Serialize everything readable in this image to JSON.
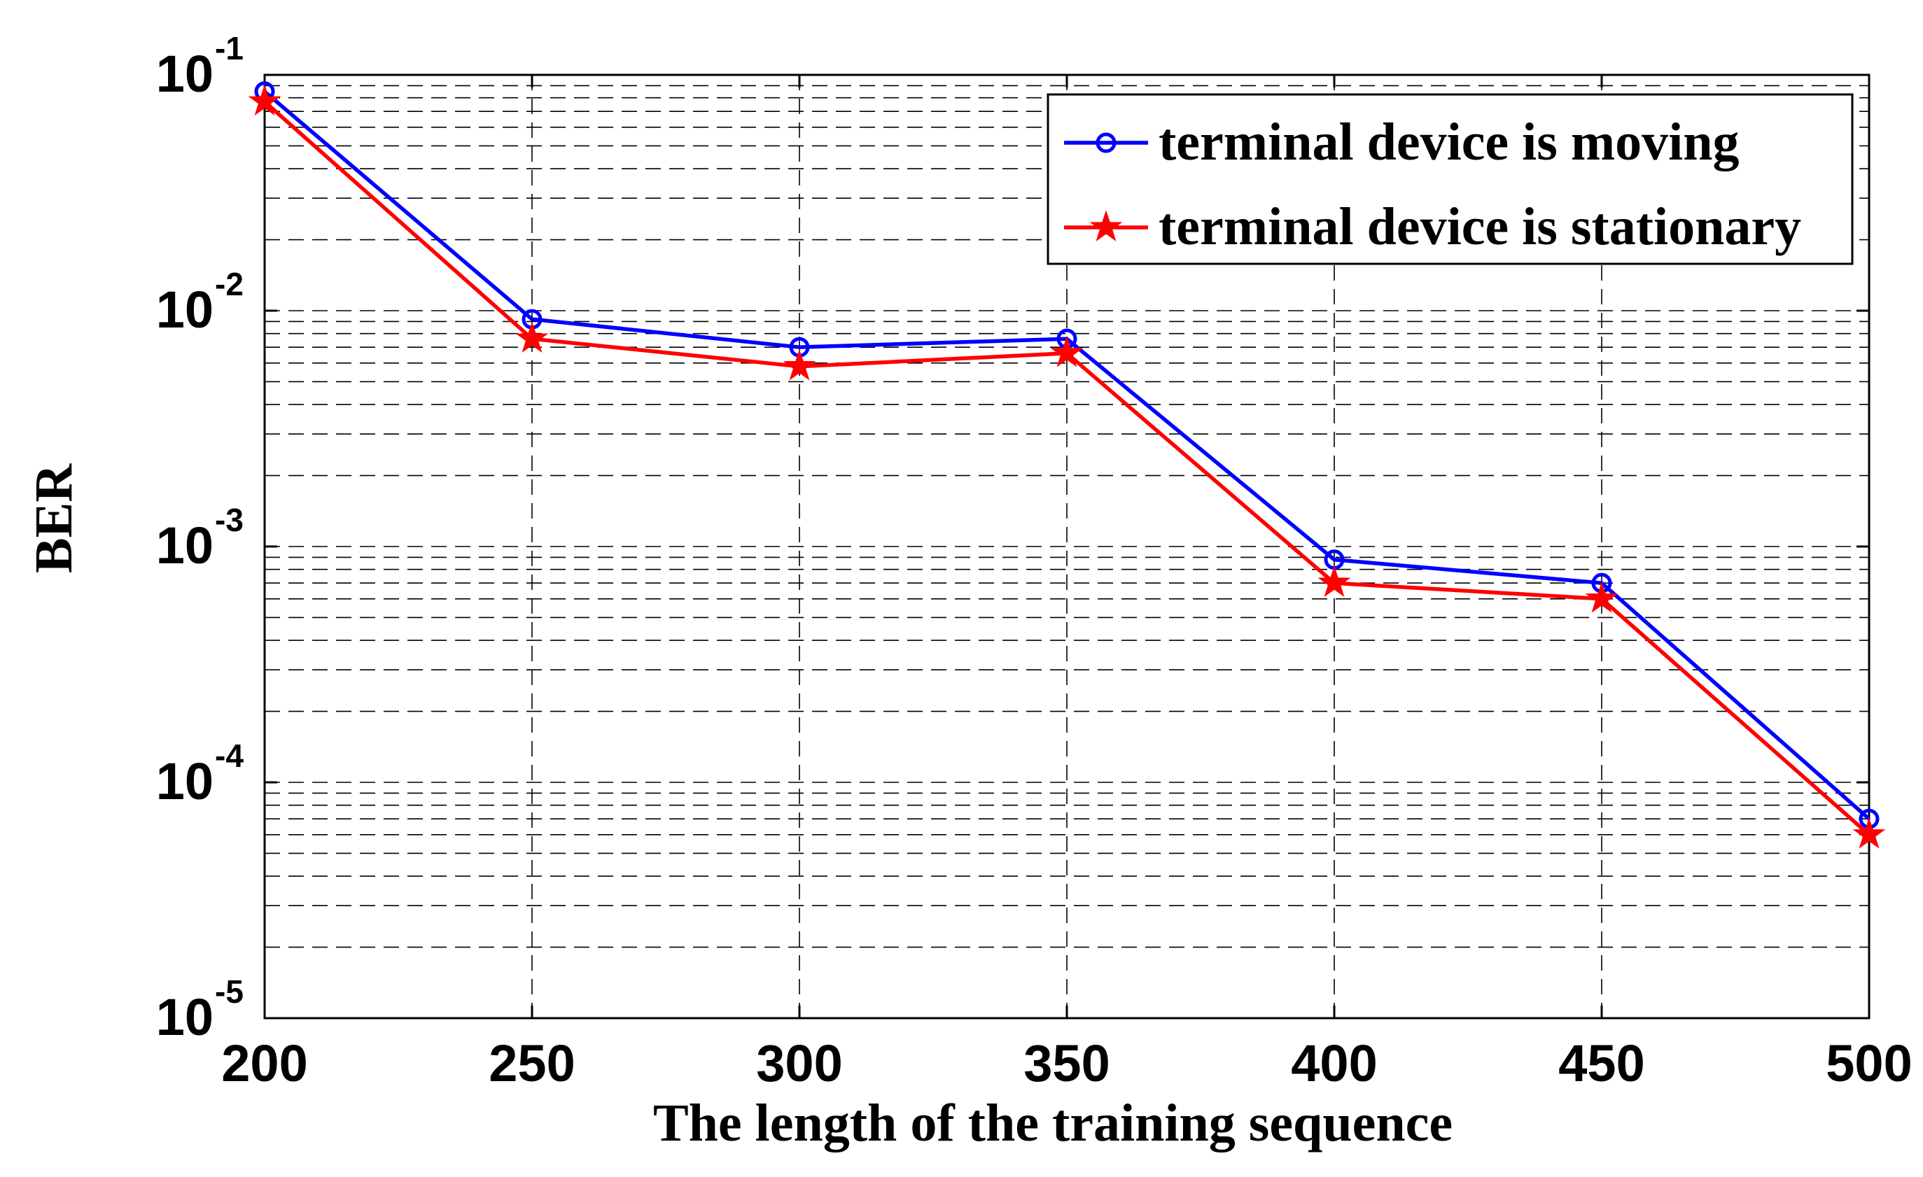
{
  "chart_data": {
    "type": "line",
    "title": "",
    "xlabel": "The length of the training sequence",
    "ylabel": "BER",
    "x": [
      200,
      250,
      300,
      350,
      400,
      450,
      500
    ],
    "xlim": [
      200,
      500
    ],
    "ylim": [
      1e-05,
      0.1
    ],
    "yscale": "log",
    "x_ticks": [
      "200",
      "250",
      "300",
      "350",
      "400",
      "450",
      "500"
    ],
    "y_ticks": [
      {
        "base": "10",
        "exp": "-1",
        "value": 0.1
      },
      {
        "base": "10",
        "exp": "-2",
        "value": 0.01
      },
      {
        "base": "10",
        "exp": "-3",
        "value": 0.001
      },
      {
        "base": "10",
        "exp": "-4",
        "value": 0.0001
      },
      {
        "base": "10",
        "exp": "-5",
        "value": 1e-05
      }
    ],
    "grid": true,
    "legend_position": "top-right",
    "series": [
      {
        "name": "terminal device is moving",
        "color": "#0000ff",
        "marker": "circle",
        "values": [
          0.085,
          0.0092,
          0.007,
          0.0076,
          0.00088,
          0.0007,
          7e-05
        ]
      },
      {
        "name": "terminal device is stationary",
        "color": "#ff0000",
        "marker": "star",
        "values": [
          0.077,
          0.0076,
          0.0058,
          0.0066,
          0.0007,
          0.0006,
          6e-05
        ]
      }
    ]
  }
}
